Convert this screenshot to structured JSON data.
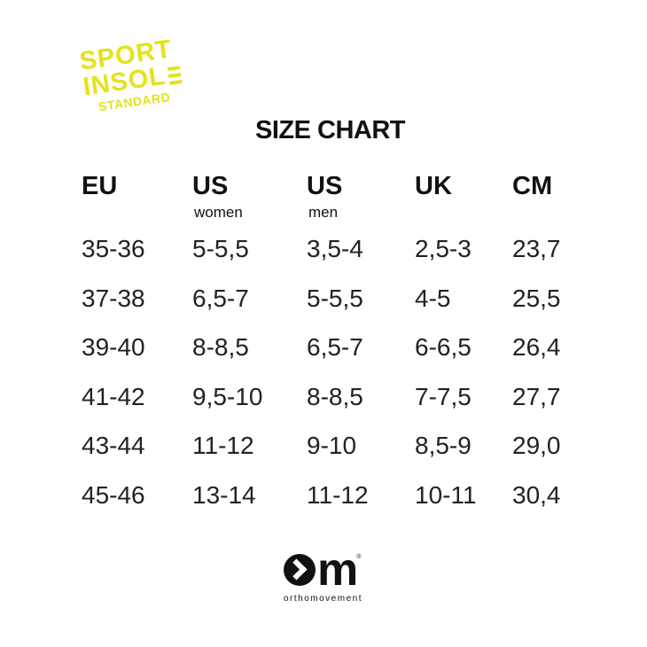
{
  "logo": {
    "line1": "SPORT",
    "line2": "INSOL",
    "line2_e": "E",
    "line3": "STANDARD",
    "color": "#e3e31a"
  },
  "title": "SIZE CHART",
  "columns": [
    {
      "header": "EU",
      "sub": "",
      "values": [
        "35-36",
        "37-38",
        "39-40",
        "41-42",
        "43-44",
        "45-46"
      ]
    },
    {
      "header": "US",
      "sub": "women",
      "values": [
        "5-5,5",
        "6,5-7",
        "8-8,5",
        "9,5-10",
        "11-12",
        "13-14"
      ]
    },
    {
      "header": "US",
      "sub": "men",
      "values": [
        "3,5-4",
        "5-5,5",
        "6,5-7",
        "8-8,5",
        "9-10",
        "11-12"
      ]
    },
    {
      "header": "UK",
      "sub": "",
      "values": [
        "2,5-3",
        "4-5",
        "6-6,5",
        "7-7,5",
        "8,5-9",
        "10-11"
      ]
    },
    {
      "header": "CM",
      "sub": "",
      "values": [
        "23,7",
        "25,5",
        "26,4",
        "27,7",
        "29,0",
        "30,4"
      ]
    }
  ],
  "brand": {
    "mark": "m",
    "registered": "®",
    "name": "orthomovement"
  }
}
